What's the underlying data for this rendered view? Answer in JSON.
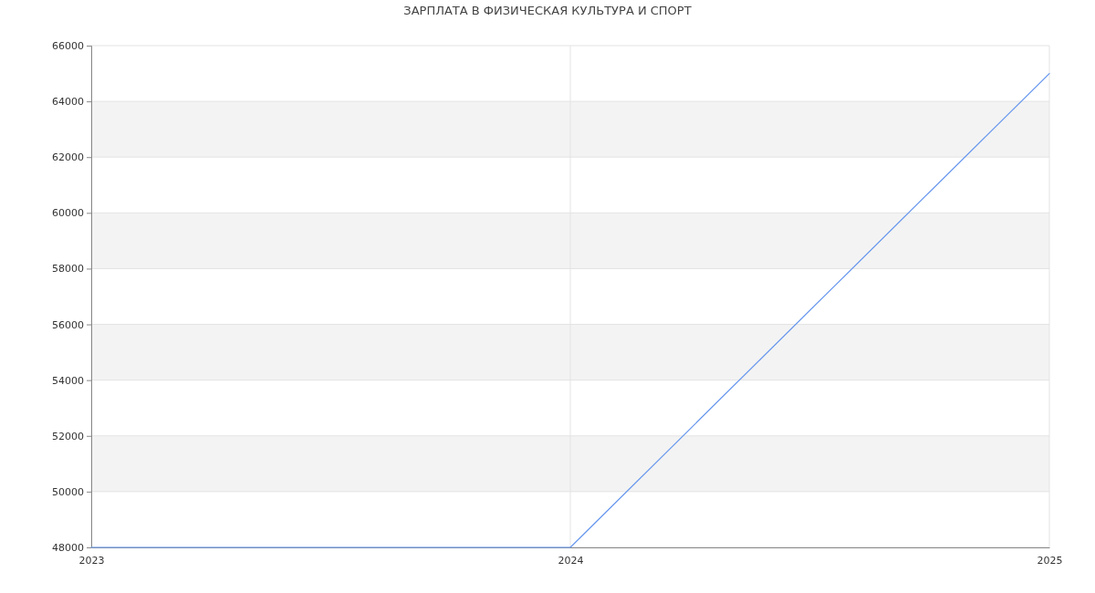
{
  "chart_data": {
    "type": "line",
    "title": "ЗАРПЛАТА В ФИЗИЧЕСКАЯ КУЛЬТУРА И СПОРТ",
    "x": [
      2023,
      2024,
      2025
    ],
    "series": [
      {
        "color": "#6495ed",
        "values": [
          48000,
          48000,
          65000
        ]
      }
    ],
    "xlim": [
      2023,
      2025
    ],
    "xticks": [
      2023,
      2024,
      2025
    ],
    "ylim": [
      48000,
      66000
    ],
    "yticks": [
      48000,
      50000,
      52000,
      54000,
      56000,
      58000,
      60000,
      62000,
      64000,
      66000
    ],
    "grid": true
  }
}
